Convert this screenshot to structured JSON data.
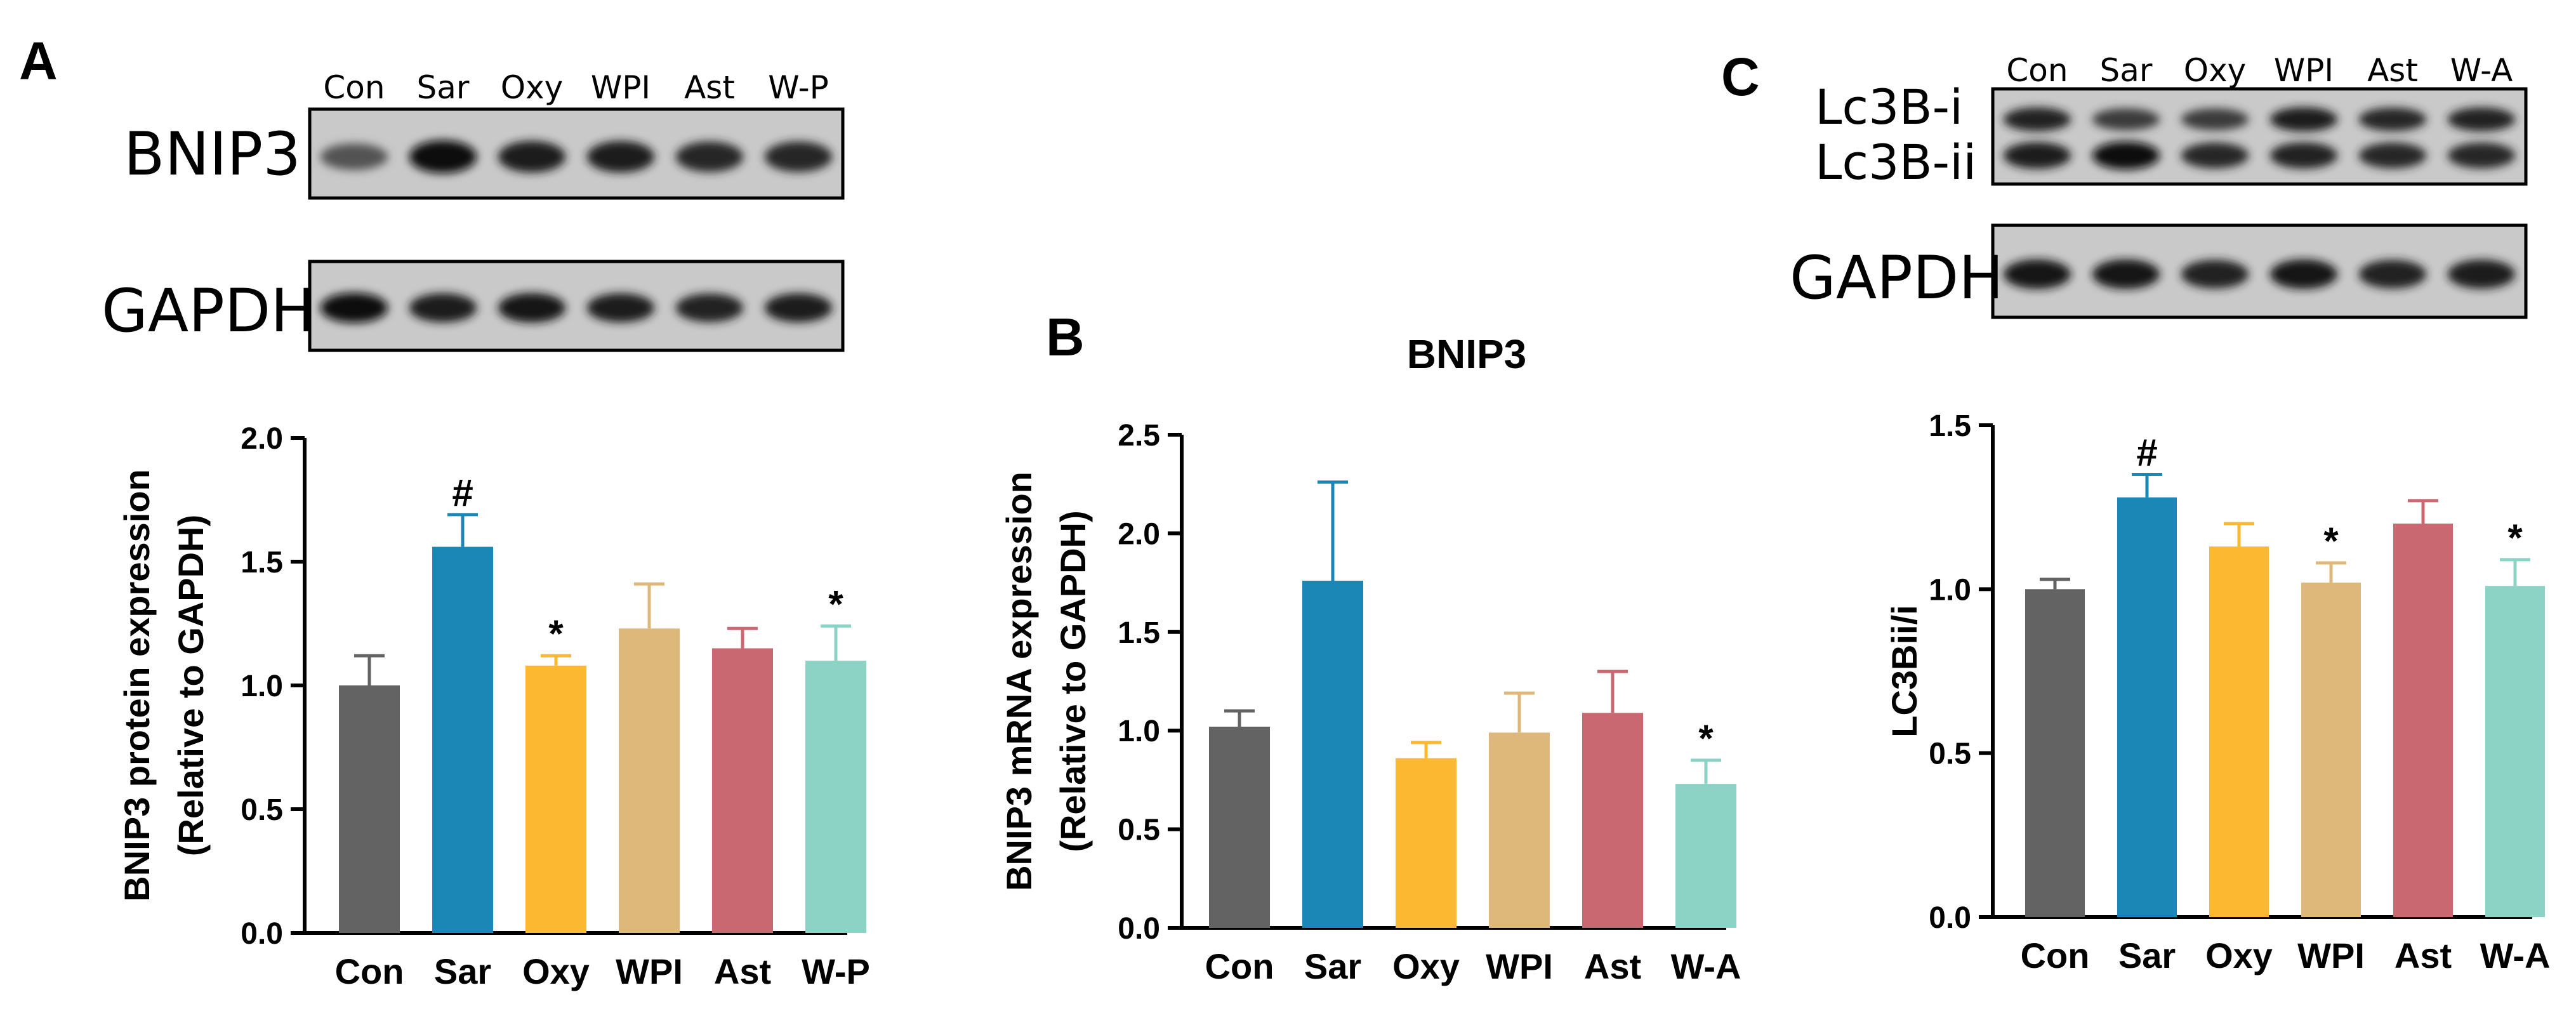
{
  "panels": [
    {
      "label": "A",
      "blots": [
        {
          "name": "BNIP3",
          "lanes": [
            "Con",
            "Sar",
            "Oxy",
            "WPI",
            "Ast",
            "W-P"
          ],
          "intensity": [
            0.35,
            1.0,
            0.85,
            0.85,
            0.75,
            0.75
          ]
        },
        {
          "name": "GAPDH",
          "lanes": [
            "Con",
            "Sar",
            "Oxy",
            "WPI",
            "Ast",
            "W-P"
          ],
          "intensity": [
            0.95,
            0.85,
            0.9,
            0.85,
            0.8,
            0.85
          ]
        }
      ]
    },
    {
      "label": "B",
      "blots": []
    },
    {
      "label": "C",
      "blots": [
        {
          "name": "Lc3B-i",
          "name2": "Lc3B-ii",
          "lanes": [
            "Con",
            "Sar",
            "Oxy",
            "WPI",
            "Ast",
            "W-A"
          ],
          "intensity": [
            0.8,
            0.55,
            0.55,
            0.85,
            0.75,
            0.8
          ],
          "intensity2": [
            0.85,
            1.0,
            0.75,
            0.8,
            0.75,
            0.75
          ]
        },
        {
          "name": "GAPDH",
          "lanes": [
            "Con",
            "Sar",
            "Oxy",
            "WPI",
            "Ast",
            "W-A"
          ],
          "intensity": [
            0.9,
            0.9,
            0.8,
            0.9,
            0.8,
            0.85
          ]
        }
      ]
    }
  ],
  "colors": [
    "#636363",
    "#1a87b6",
    "#fbb830",
    "#deb87a",
    "#c96870",
    "#8cd3c5"
  ],
  "chart_data": [
    {
      "type": "bar",
      "panel": "A",
      "title": "",
      "ylabel_line1": "BNIP3 protein expression",
      "ylabel_line2": "(Relative to GAPDH)",
      "categories": [
        "Con",
        "Sar",
        "Oxy",
        "WPI",
        "Ast",
        "W-P"
      ],
      "values": [
        1.0,
        1.56,
        1.08,
        1.23,
        1.15,
        1.1
      ],
      "errors": [
        0.12,
        0.13,
        0.04,
        0.18,
        0.08,
        0.14
      ],
      "significance": [
        "",
        "#",
        "*",
        "",
        "",
        "*"
      ],
      "ylim": [
        0,
        2.0
      ],
      "yticks": [
        "0.0",
        "0.5",
        "1.0",
        "1.5",
        "2.0"
      ],
      "ytick_values": [
        0,
        0.5,
        1.0,
        1.5,
        2.0
      ]
    },
    {
      "type": "bar",
      "panel": "B",
      "title": "BNIP3",
      "ylabel_line1": "BNIP3 mRNA expression",
      "ylabel_line2": "(Relative to GAPDH)",
      "categories": [
        "Con",
        "Sar",
        "Oxy",
        "WPI",
        "Ast",
        "W-A"
      ],
      "values": [
        1.02,
        1.76,
        0.86,
        0.99,
        1.09,
        0.73
      ],
      "errors": [
        0.08,
        0.5,
        0.08,
        0.2,
        0.21,
        0.12
      ],
      "significance": [
        "",
        "",
        "",
        "",
        "",
        "*"
      ],
      "ylim": [
        0,
        2.5
      ],
      "yticks": [
        "0.0",
        "0.5",
        "1.0",
        "1.5",
        "2.0",
        "2.5"
      ],
      "ytick_values": [
        0,
        0.5,
        1.0,
        1.5,
        2.0,
        2.5
      ]
    },
    {
      "type": "bar",
      "panel": "C",
      "title": "",
      "ylabel_line1": "LC3Bii/i",
      "ylabel_line2": "",
      "categories": [
        "Con",
        "Sar",
        "Oxy",
        "WPI",
        "Ast",
        "W-A"
      ],
      "values": [
        1.0,
        1.28,
        1.13,
        1.02,
        1.2,
        1.01
      ],
      "errors": [
        0.03,
        0.07,
        0.07,
        0.06,
        0.07,
        0.08
      ],
      "significance": [
        "",
        "#",
        "",
        "*",
        "",
        "*"
      ],
      "ylim": [
        0,
        1.5
      ],
      "yticks": [
        "0.0",
        "0.5",
        "1.0",
        "1.5"
      ],
      "ytick_values": [
        0,
        0.5,
        1.0,
        1.5
      ]
    }
  ]
}
